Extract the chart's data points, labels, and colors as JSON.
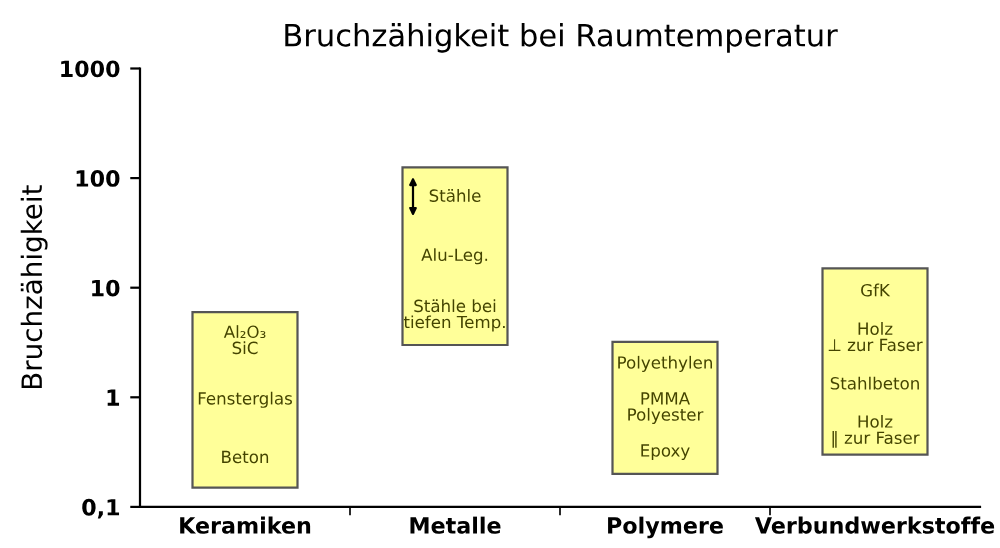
{
  "chart_data": {
    "type": "bar",
    "title": "Bruchzähigkeit bei Raumtemperatur",
    "ylabel": "Bruchzähigkeit",
    "categories": [
      "Keramiken",
      "Metalle",
      "Polymere",
      "Verbundwerkstoffe"
    ],
    "base": [
      0.15,
      3,
      0.2,
      0.3
    ],
    "values": [
      5.85,
      122,
      3.0,
      14.7
    ],
    "color": "#ffff99",
    "log": true,
    "ylim": [
      0.1,
      1000
    ],
    "yticks": [
      {
        "value": 0.1,
        "label": "0,1"
      },
      1,
      10,
      100,
      1000
    ],
    "grid": false,
    "annotations": [
      "Al₂O₃\nSiC",
      "Fensterglas",
      "Beton",
      "Stähle",
      "Alu-Leg.",
      "Stähle bei\ntiefen Temp.",
      "Polyethylen",
      "PMMA\nPolyester",
      "Epoxy",
      "GfK",
      "Holz\n⊥ zur Faser",
      "Stahlbeton",
      "Holz\n‖ zur Faser"
    ]
  }
}
